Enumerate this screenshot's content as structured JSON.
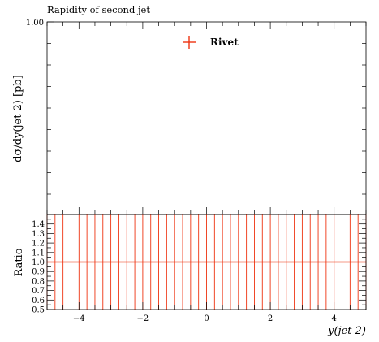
{
  "chart_data": {
    "type": "line",
    "title": "Rapidity of second jet",
    "top_panel": {
      "ylabel": "dσ/dy(jet 2) [pb]",
      "y_tick_labels": [
        {
          "value": 1.0,
          "label": "1.00"
        }
      ],
      "ylim_top": 1.0,
      "legend": {
        "position": "top-center",
        "entries": [
          {
            "name": "Rivet",
            "marker": "cross",
            "color": "#ee3311"
          }
        ]
      },
      "series": [
        {
          "name": "Rivet",
          "color": "#ee3311",
          "points": []
        }
      ]
    },
    "ratio_panel": {
      "ylabel": "Ratio",
      "ylim": [
        0.5,
        1.5
      ],
      "y_ticks": [
        0.5,
        0.6,
        0.7,
        0.8,
        0.9,
        1.0,
        1.1,
        1.2,
        1.3,
        1.4
      ],
      "y_tick_labels": [
        "0.5",
        "0.6",
        "0.7",
        "0.8",
        "0.9",
        "1.0",
        "1.1",
        "1.2",
        "1.3",
        "1.4"
      ],
      "reference_line": 1.0,
      "series": [
        {
          "name": "Rivet",
          "color": "#ee3311",
          "x_edges": [
            -5.0,
            -4.75,
            -4.5,
            -4.25,
            -4.0,
            -3.75,
            -3.5,
            -3.25,
            -3.0,
            -2.75,
            -2.5,
            -2.25,
            -2.0,
            -1.75,
            -1.5,
            -1.25,
            -1.0,
            -0.75,
            -0.5,
            -0.25,
            0.0,
            0.25,
            0.5,
            0.75,
            1.0,
            1.25,
            1.5,
            1.75,
            2.0,
            2.25,
            2.5,
            2.75,
            3.0,
            3.25,
            3.5,
            3.75,
            4.0,
            4.25,
            4.5,
            4.75,
            5.0
          ],
          "ratio_value": 1.0
        }
      ]
    },
    "xlabel": "y(jet 2)",
    "xlim": [
      -5.0,
      5.0
    ],
    "x_ticks": [
      -4,
      -2,
      0,
      2,
      4
    ],
    "x_tick_labels": [
      "−4",
      "−2",
      "0",
      "2",
      "4"
    ]
  }
}
